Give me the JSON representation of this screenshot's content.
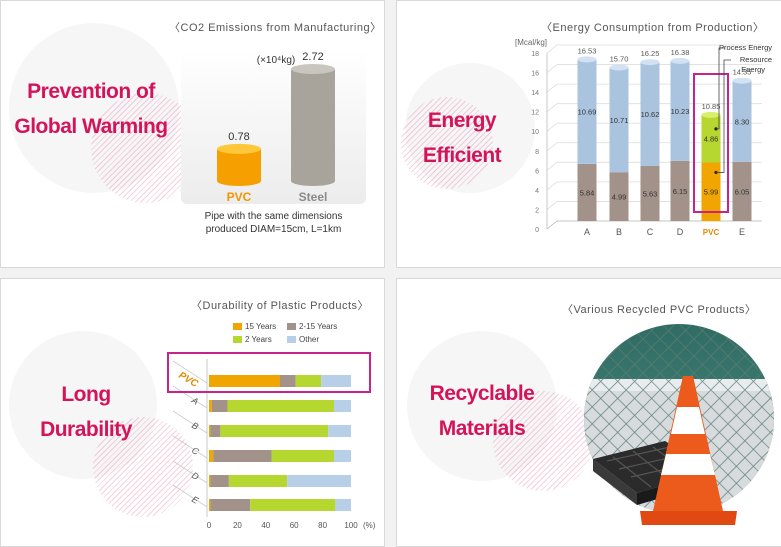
{
  "panel1": {
    "title": "〈CO2 Emissions from Manufacturing〉",
    "headline": [
      "Prevention of",
      "Global Warming"
    ],
    "unit": "(×10⁴kg)",
    "note": [
      "Pipe with the same dimensions",
      "produced DIAM=15cm, L=1km"
    ]
  },
  "panel2": {
    "title": "〈Energy Consumption from Production〉",
    "headline": [
      "Energy",
      "Efficient"
    ],
    "legend": [
      "Process Energy",
      "Resource",
      "Energy"
    ]
  },
  "panel3": {
    "title": "〈Durability of Plastic Products〉",
    "headline": [
      "Long",
      "Durability"
    ]
  },
  "panel4": {
    "title": "〈Various Recycled PVC Products〉",
    "headline": [
      "Recyclable",
      "Materials"
    ]
  },
  "chart_data": [
    {
      "type": "bar",
      "title": "CO2 Emissions from Manufacturing",
      "ylabel": "(×10⁴kg)",
      "categories": [
        "PVC",
        "Steel"
      ],
      "values": [
        0.78,
        2.72
      ],
      "colors": {
        "PVC": "#f5a000",
        "Steel": "#a8a49c"
      }
    },
    {
      "type": "bar",
      "stacked": true,
      "title": "Energy Consumption from Production",
      "ylabel": "[Mcal/kg]",
      "ylim": [
        0,
        18
      ],
      "yticks": [
        0,
        2,
        4,
        6,
        8,
        10,
        12,
        14,
        16,
        18
      ],
      "categories": [
        "A",
        "B",
        "C",
        "D",
        "PVC",
        "E"
      ],
      "totals": [
        16.53,
        15.7,
        16.25,
        16.38,
        10.85,
        14.35
      ],
      "series": [
        {
          "name": "Resource Energy",
          "values": [
            5.84,
            4.99,
            5.63,
            6.15,
            5.99,
            6.05
          ]
        },
        {
          "name": "Process Energy",
          "values": [
            10.69,
            10.71,
            10.62,
            10.23,
            4.86,
            8.3
          ]
        }
      ],
      "colors": {
        "lower": "#a39289",
        "upper": "#aac4e0",
        "pvc_lower": "#f0a500",
        "pvc_upper": "#b6d630"
      }
    },
    {
      "type": "bar",
      "stacked": true,
      "orientation": "horizontal",
      "title": "Durability of Plastic Products",
      "xlabel": "(%)",
      "xlim": [
        0,
        100
      ],
      "xticks": [
        0,
        20,
        40,
        60,
        80,
        100
      ],
      "categories": [
        "PVC",
        "A",
        "B",
        "C",
        "D",
        "E"
      ],
      "series": [
        {
          "name": "15 Years",
          "color": "#f0a500",
          "values": [
            50,
            2,
            1,
            3,
            1,
            1
          ]
        },
        {
          "name": "2-15 Years",
          "color": "#a39289",
          "values": [
            11,
            11,
            7,
            41,
            13,
            28
          ]
        },
        {
          "name": "2 Years",
          "color": "#b6d630",
          "values": [
            18,
            75,
            76,
            44,
            41,
            60
          ]
        },
        {
          "name": "Other",
          "color": "#b8cfe8",
          "values": [
            21,
            12,
            16,
            12,
            45,
            11
          ]
        }
      ]
    }
  ]
}
